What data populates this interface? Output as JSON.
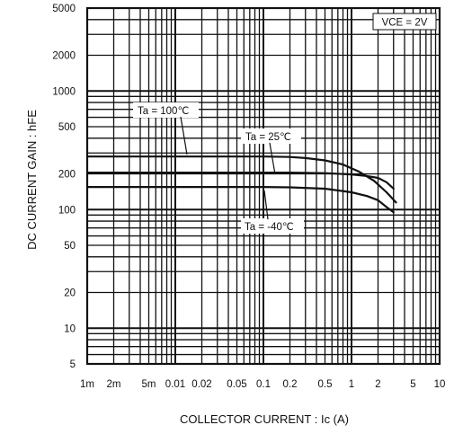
{
  "chart_data": {
    "type": "line",
    "xscale": "log",
    "yscale": "log",
    "xlim": [
      0.001,
      10
    ],
    "ylim": [
      5,
      5000
    ],
    "xlabel": "COLLECTOR CURRENT : Ic (A)",
    "ylabel": "DC CURRENT GAIN : hFE",
    "x_ticks": [
      {
        "value": 0.001,
        "label": "1m"
      },
      {
        "value": 0.002,
        "label": "2m"
      },
      {
        "value": 0.005,
        "label": "5m"
      },
      {
        "value": 0.01,
        "label": "0.01"
      },
      {
        "value": 0.02,
        "label": "0.02"
      },
      {
        "value": 0.05,
        "label": "0.05"
      },
      {
        "value": 0.1,
        "label": "0.1"
      },
      {
        "value": 0.2,
        "label": "0.2"
      },
      {
        "value": 0.5,
        "label": "0.5"
      },
      {
        "value": 1,
        "label": "1"
      },
      {
        "value": 2,
        "label": "2"
      },
      {
        "value": 5,
        "label": "5"
      },
      {
        "value": 10,
        "label": "10"
      }
    ],
    "y_ticks": [
      {
        "value": 5,
        "label": "5"
      },
      {
        "value": 10,
        "label": "10"
      },
      {
        "value": 20,
        "label": "20"
      },
      {
        "value": 50,
        "label": "50"
      },
      {
        "value": 100,
        "label": "100"
      },
      {
        "value": 200,
        "label": "200"
      },
      {
        "value": 500,
        "label": "500"
      },
      {
        "value": 1000,
        "label": "1000"
      },
      {
        "value": 2000,
        "label": "2000"
      },
      {
        "value": 5000,
        "label": "5000"
      }
    ],
    "grid": true,
    "condition_label": "VCE = 2V",
    "series": [
      {
        "name": "Ta = 100℃",
        "x": [
          0.001,
          0.01,
          0.1,
          0.2,
          0.3,
          0.5,
          0.8,
          1.2,
          1.8,
          2.5,
          3.2
        ],
        "y": [
          280,
          280,
          280,
          278,
          272,
          260,
          240,
          210,
          175,
          140,
          115
        ]
      },
      {
        "name": "Ta = 25℃",
        "x": [
          0.001,
          0.01,
          0.1,
          0.2,
          0.5,
          1,
          1.5,
          2,
          2.5,
          3
        ],
        "y": [
          205,
          205,
          205,
          205,
          203,
          198,
          192,
          185,
          170,
          150
        ]
      },
      {
        "name": "Ta = -40℃",
        "x": [
          0.001,
          0.01,
          0.1,
          0.2,
          0.5,
          1,
          1.5,
          2,
          2.5,
          3
        ],
        "y": [
          155,
          155,
          155,
          154,
          150,
          140,
          130,
          120,
          105,
          95
        ]
      }
    ]
  }
}
